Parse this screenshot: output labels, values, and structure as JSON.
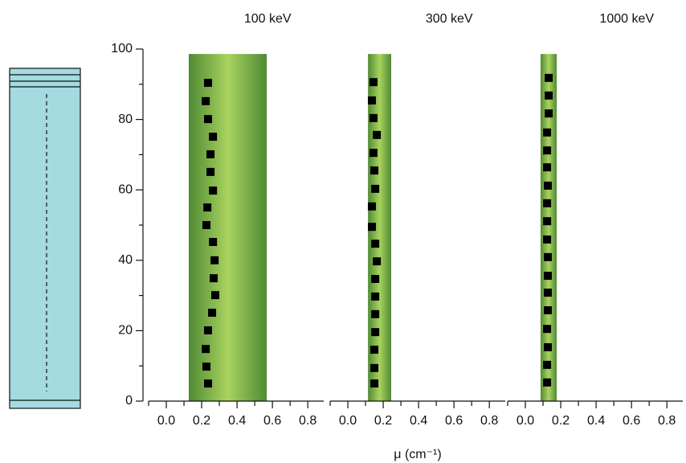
{
  "chart_data": [
    {
      "type": "scatter",
      "title": "100 keV",
      "color": "#000000",
      "x": [
        0.236,
        0.223,
        0.236,
        0.264,
        0.25,
        0.25,
        0.264,
        0.232,
        0.227,
        0.264,
        0.273,
        0.268,
        0.277,
        0.259,
        0.236,
        0.223,
        0.227,
        0.236
      ],
      "values": [
        90.4,
        85.2,
        80.1,
        75.1,
        70.1,
        65.1,
        59.8,
        55,
        50,
        45.2,
        40,
        34.9,
        30.1,
        25.1,
        20.1,
        14.8,
        9.8,
        5
      ],
      "band": [
        0.127,
        0.568
      ],
      "band_y": [
        0,
        98.6
      ],
      "xlim": [
        -0.1,
        0.89
      ],
      "ylim": [
        0,
        100
      ],
      "xticks": [
        {
          "value": 0,
          "label": "0.0"
        },
        {
          "value": 0.2,
          "label": "0.2"
        },
        {
          "value": 0.4,
          "label": "0.4"
        },
        {
          "value": 0.6,
          "label": "0.6"
        },
        {
          "value": 0.8,
          "label": "0.8"
        }
      ],
      "xminor": [
        -0.1,
        0.1,
        0.3,
        0.5,
        0.7
      ],
      "yticks": [
        0,
        20,
        40,
        60,
        80,
        100
      ],
      "yminor": [
        10,
        30,
        50,
        70,
        90
      ]
    },
    {
      "type": "scatter",
      "title": "300 keV",
      "color": "#000000",
      "x": [
        0.145,
        0.136,
        0.145,
        0.164,
        0.145,
        0.15,
        0.155,
        0.136,
        0.136,
        0.155,
        0.164,
        0.155,
        0.155,
        0.155,
        0.155,
        0.15,
        0.15,
        0.15
      ],
      "values": [
        90.6,
        85.4,
        80.4,
        75.6,
        70.5,
        65.5,
        60.3,
        55.3,
        49.5,
        44.7,
        39.7,
        34.7,
        29.7,
        24.7,
        19.6,
        14.6,
        9.4,
        5
      ],
      "band": [
        0.114,
        0.245
      ],
      "band_y": [
        0,
        98.6
      ],
      "xlim": [
        -0.1,
        0.89
      ],
      "ylim": [
        0,
        100
      ],
      "xticks": [
        {
          "value": 0,
          "label": "0.0"
        },
        {
          "value": 0.2,
          "label": "0.2"
        },
        {
          "value": 0.4,
          "label": "0.4"
        },
        {
          "value": 0.6,
          "label": "0.6"
        },
        {
          "value": 0.8,
          "label": "0.8"
        }
      ],
      "xminor": [
        -0.1,
        0.1,
        0.3,
        0.5,
        0.7
      ],
      "x_label": "μ (cm⁻¹)"
    },
    {
      "type": "scatter",
      "title": "1000 keV",
      "color": "#000000",
      "x": [
        0.132,
        0.132,
        0.132,
        0.123,
        0.123,
        0.123,
        0.127,
        0.123,
        0.123,
        0.123,
        0.127,
        0.127,
        0.127,
        0.127,
        0.123,
        0.127,
        0.123,
        0.123
      ],
      "values": [
        91.8,
        86.8,
        81.7,
        76.3,
        71.2,
        66.4,
        61.2,
        56.2,
        51.1,
        45.9,
        40.9,
        35.6,
        30.8,
        25.8,
        20.5,
        15.3,
        10.3,
        5.3
      ],
      "band": [
        0.086,
        0.177
      ],
      "band_y": [
        0,
        98.6
      ],
      "xlim": [
        -0.1,
        0.89
      ],
      "ylim": [
        0,
        100
      ],
      "xticks": [
        {
          "value": 0,
          "label": "0.0"
        },
        {
          "value": 0.2,
          "label": "0.2"
        },
        {
          "value": 0.4,
          "label": "0.4"
        },
        {
          "value": 0.6,
          "label": "0.6"
        },
        {
          "value": 0.8,
          "label": "0.8"
        }
      ],
      "xminor": [
        -0.1,
        0.1,
        0.3,
        0.5,
        0.7
      ]
    }
  ]
}
